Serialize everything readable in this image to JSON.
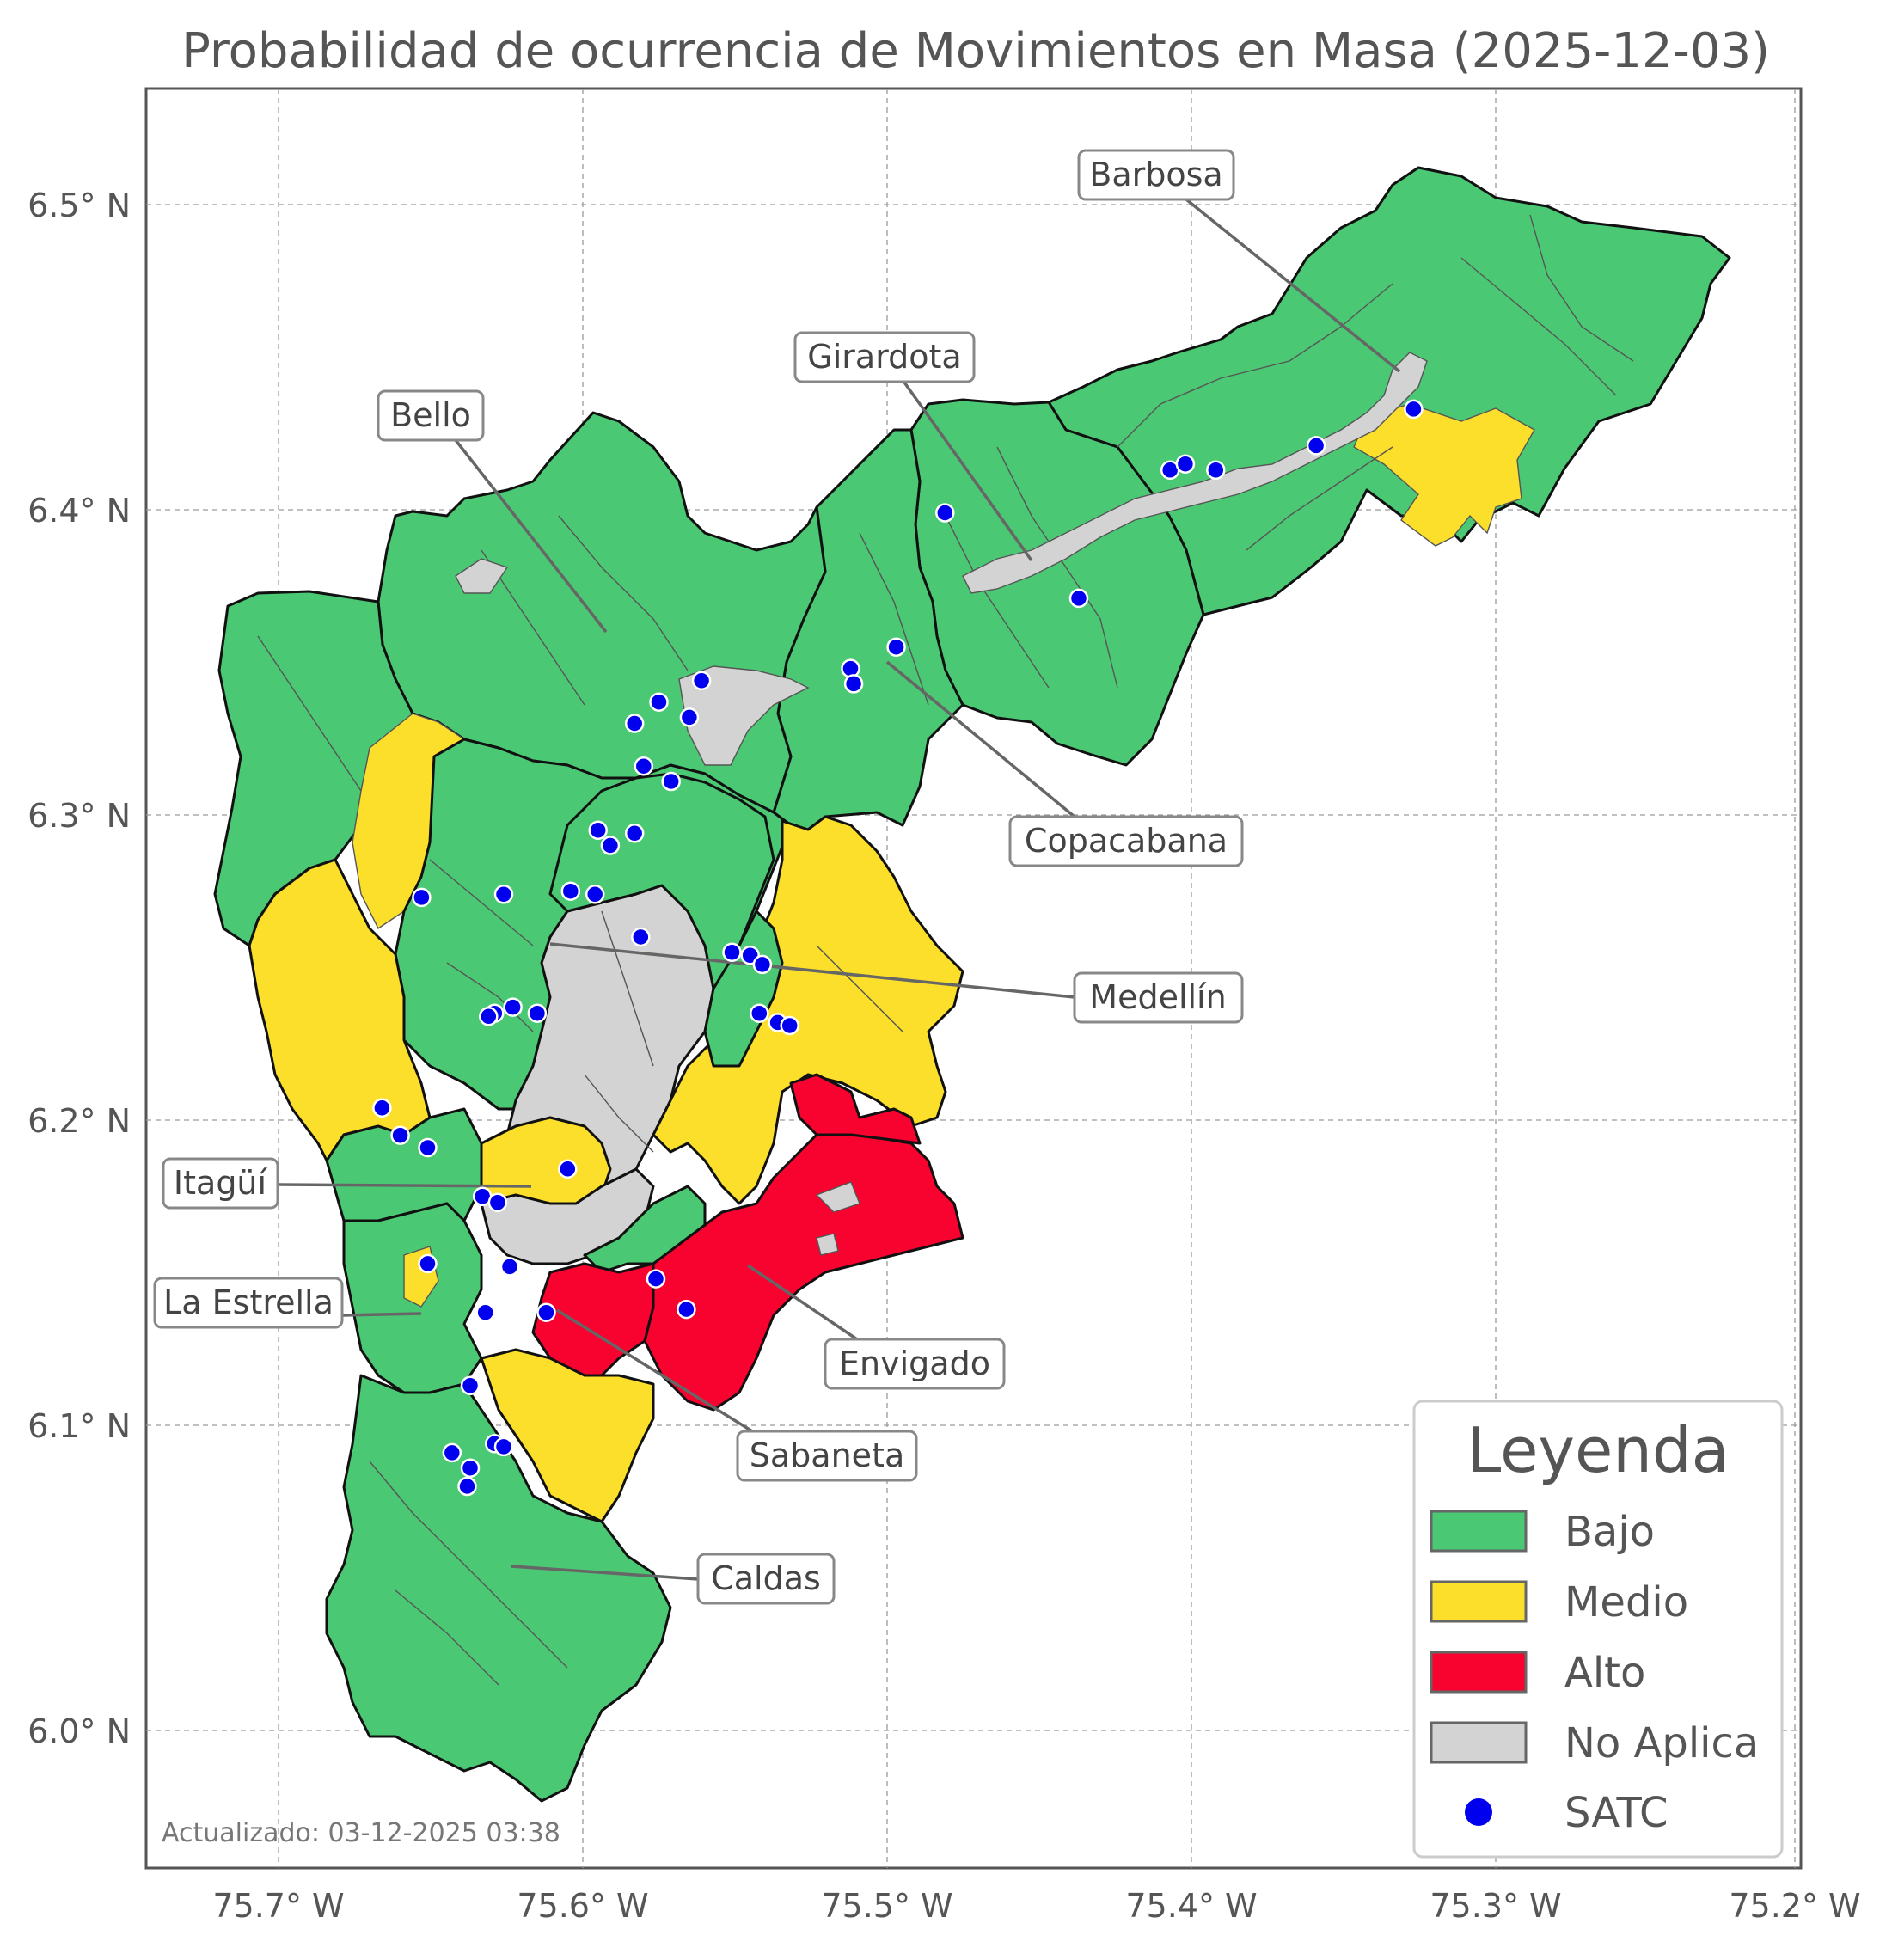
{
  "title": "Probabilidad de ocurrencia de Movimientos en Masa (2025-12-03)",
  "updated": "Actualizado: 03-12-2025 03:38",
  "axes": {
    "x_ticks": [
      "75.7° W",
      "75.6° W",
      "75.5° W",
      "75.4° W",
      "75.3° W",
      "75.2° W"
    ],
    "y_ticks": [
      "6.5° N",
      "6.4° N",
      "6.3° N",
      "6.2° N",
      "6.1° N",
      "6.0° N"
    ],
    "grid": true
  },
  "colors": {
    "bajo": "#4bc874",
    "medio": "#fbdf2a",
    "alto": "#f8022f",
    "no_aplica": "#d3d3d3",
    "satc": "#0000ee"
  },
  "legend": {
    "title": "Leyenda",
    "placement": "bottom-right",
    "items": [
      {
        "label": "Bajo",
        "symbol": "patch",
        "color": "#4bc874"
      },
      {
        "label": "Medio",
        "symbol": "patch",
        "color": "#fbdf2a"
      },
      {
        "label": "Alto",
        "symbol": "patch",
        "color": "#f8022f"
      },
      {
        "label": "No Aplica",
        "symbol": "patch",
        "color": "#d3d3d3"
      },
      {
        "label": "SATC",
        "symbol": "dot",
        "color": "#0000ee"
      }
    ]
  },
  "municipalities": [
    {
      "name": "Barbosa",
      "level": "Bajo"
    },
    {
      "name": "Girardota",
      "level": "Bajo"
    },
    {
      "name": "Bello",
      "level": "Bajo"
    },
    {
      "name": "Copacabana",
      "level": "Bajo"
    },
    {
      "name": "Medellín",
      "level": "Bajo/Medio"
    },
    {
      "name": "Itagüí",
      "level": "Medio"
    },
    {
      "name": "La Estrella",
      "level": "Bajo"
    },
    {
      "name": "Envigado",
      "level": "Alto"
    },
    {
      "name": "Sabaneta",
      "level": "Alto"
    },
    {
      "name": "Caldas",
      "level": "Bajo"
    }
  ],
  "satc_stations": [
    {
      "lon": -75.327,
      "lat": 6.433
    },
    {
      "lon": -75.359,
      "lat": 6.421
    },
    {
      "lon": -75.407,
      "lat": 6.413
    },
    {
      "lon": -75.402,
      "lat": 6.415
    },
    {
      "lon": -75.392,
      "lat": 6.413
    },
    {
      "lon": -75.481,
      "lat": 6.399
    },
    {
      "lon": -75.437,
      "lat": 6.371
    },
    {
      "lon": -75.497,
      "lat": 6.355
    },
    {
      "lon": -75.512,
      "lat": 6.348
    },
    {
      "lon": -75.511,
      "lat": 6.343
    },
    {
      "lon": -75.561,
      "lat": 6.344
    },
    {
      "lon": -75.575,
      "lat": 6.337
    },
    {
      "lon": -75.565,
      "lat": 6.332
    },
    {
      "lon": -75.583,
      "lat": 6.33
    },
    {
      "lon": -75.58,
      "lat": 6.316
    },
    {
      "lon": -75.571,
      "lat": 6.311
    },
    {
      "lon": -75.595,
      "lat": 6.295
    },
    {
      "lon": -75.583,
      "lat": 6.294
    },
    {
      "lon": -75.591,
      "lat": 6.29
    },
    {
      "lon": -75.653,
      "lat": 6.273
    },
    {
      "lon": -75.626,
      "lat": 6.274
    },
    {
      "lon": -75.604,
      "lat": 6.275
    },
    {
      "lon": -75.596,
      "lat": 6.274
    },
    {
      "lon": -75.581,
      "lat": 6.26
    },
    {
      "lon": -75.551,
      "lat": 6.255
    },
    {
      "lon": -75.545,
      "lat": 6.254
    },
    {
      "lon": -75.541,
      "lat": 6.251
    },
    {
      "lon": -75.623,
      "lat": 6.237
    },
    {
      "lon": -75.629,
      "lat": 6.235
    },
    {
      "lon": -75.631,
      "lat": 6.234
    },
    {
      "lon": -75.615,
      "lat": 6.235
    },
    {
      "lon": -75.542,
      "lat": 6.235
    },
    {
      "lon": -75.536,
      "lat": 6.232
    },
    {
      "lon": -75.532,
      "lat": 6.231
    },
    {
      "lon": -75.666,
      "lat": 6.204
    },
    {
      "lon": -75.66,
      "lat": 6.195
    },
    {
      "lon": -75.651,
      "lat": 6.191
    },
    {
      "lon": -75.605,
      "lat": 6.184
    },
    {
      "lon": -75.633,
      "lat": 6.175
    },
    {
      "lon": -75.628,
      "lat": 6.173
    },
    {
      "lon": -75.651,
      "lat": 6.153
    },
    {
      "lon": -75.624,
      "lat": 6.152
    },
    {
      "lon": -75.576,
      "lat": 6.148
    },
    {
      "lon": -75.566,
      "lat": 6.138
    },
    {
      "lon": -75.632,
      "lat": 6.137
    },
    {
      "lon": -75.612,
      "lat": 6.137
    },
    {
      "lon": -75.637,
      "lat": 6.113
    },
    {
      "lon": -75.629,
      "lat": 6.094
    },
    {
      "lon": -75.626,
      "lat": 6.093
    },
    {
      "lon": -75.643,
      "lat": 6.091
    },
    {
      "lon": -75.637,
      "lat": 6.086
    },
    {
      "lon": -75.638,
      "lat": 6.08
    }
  ]
}
